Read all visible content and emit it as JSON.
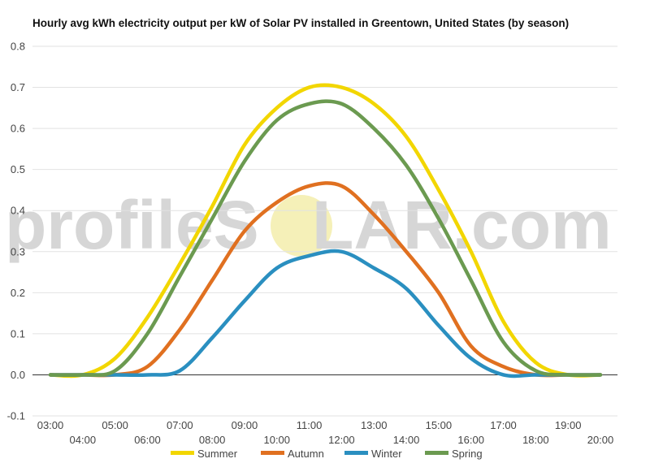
{
  "chart_data": {
    "type": "line",
    "title": "Hourly avg kWh electricity output per kW of Solar PV installed in Greentown, United States (by season)",
    "xlabel": "",
    "ylabel": "",
    "x": [
      "03:00",
      "04:00",
      "05:00",
      "06:00",
      "07:00",
      "08:00",
      "09:00",
      "10:00",
      "11:00",
      "12:00",
      "13:00",
      "14:00",
      "15:00",
      "16:00",
      "17:00",
      "18:00",
      "19:00",
      "20:00"
    ],
    "ylim": [
      -0.1,
      0.8
    ],
    "yticks": [
      "0.8",
      "0.7",
      "0.6",
      "0.5",
      "0.4",
      "0.3",
      "0.2",
      "0.1",
      "0.0",
      "-0.1"
    ],
    "grid": true,
    "legend_position": "bottom",
    "series": [
      {
        "name": "Summer",
        "color": "#f2d600",
        "values": [
          0.0,
          0.0,
          0.04,
          0.14,
          0.27,
          0.41,
          0.56,
          0.65,
          0.7,
          0.7,
          0.66,
          0.58,
          0.45,
          0.3,
          0.13,
          0.03,
          0.0,
          0.0
        ]
      },
      {
        "name": "Autumn",
        "color": "#e07020",
        "values": [
          0.0,
          0.0,
          0.0,
          0.02,
          0.11,
          0.23,
          0.35,
          0.42,
          0.46,
          0.46,
          0.39,
          0.3,
          0.2,
          0.07,
          0.02,
          0.0,
          0.0,
          0.0
        ]
      },
      {
        "name": "Winter",
        "color": "#2a8fc0",
        "values": [
          0.0,
          0.0,
          0.0,
          0.0,
          0.01,
          0.09,
          0.18,
          0.26,
          0.29,
          0.3,
          0.26,
          0.21,
          0.12,
          0.04,
          0.0,
          0.0,
          0.0,
          0.0
        ]
      },
      {
        "name": "Spring",
        "color": "#6b9a50",
        "values": [
          0.0,
          0.0,
          0.01,
          0.1,
          0.24,
          0.38,
          0.52,
          0.62,
          0.66,
          0.66,
          0.6,
          0.51,
          0.38,
          0.23,
          0.08,
          0.01,
          0.0,
          0.0
        ]
      }
    ]
  },
  "watermark": {
    "prefix": "profileS",
    "sun_letter": "O",
    "suffix": "LAR.com",
    "sun_color": "#f5f0b8"
  }
}
